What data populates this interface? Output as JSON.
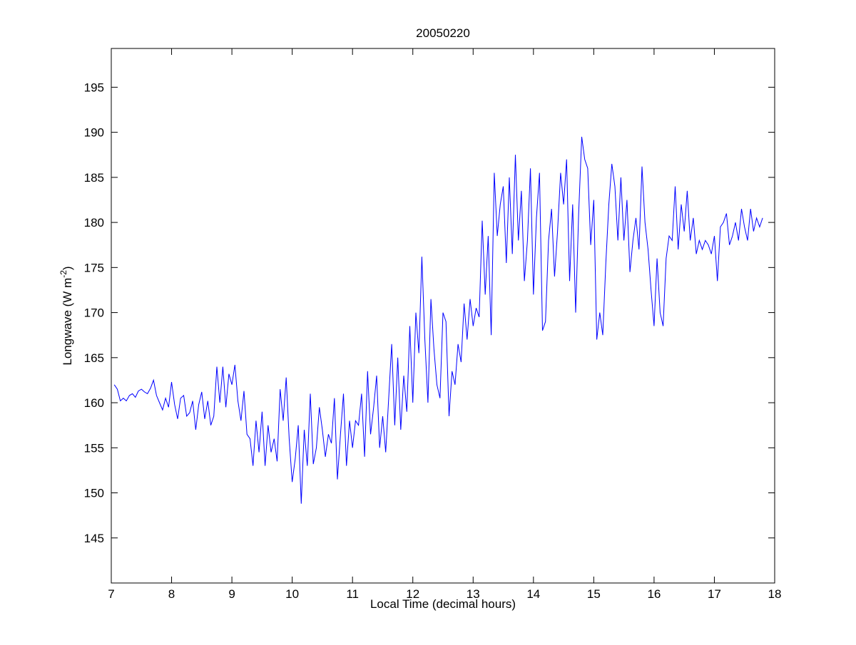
{
  "chart_data": {
    "type": "line",
    "title": "20050220",
    "xlabel": "Local Time (decimal hours)",
    "ylabel": {
      "main": "Longwave (W m",
      "superscript": "-2",
      "suffix": ")"
    },
    "xlim": [
      7,
      18
    ],
    "ylim": [
      140,
      199.3
    ],
    "xticks": [
      7,
      8,
      9,
      10,
      11,
      12,
      13,
      14,
      15,
      16,
      17,
      18
    ],
    "yticks": [
      145,
      150,
      155,
      160,
      165,
      170,
      175,
      180,
      185,
      190,
      195
    ],
    "grid": false,
    "series": [
      {
        "name": "Longwave",
        "color": "#0000ff",
        "x_start": 7.05,
        "x_step": 0.05,
        "values": [
          162,
          161.5,
          160.2,
          160.5,
          160.2,
          160.8,
          161.0,
          160.6,
          161.3,
          161.5,
          161.2,
          161.0,
          161.6,
          162.5,
          160.8,
          160.0,
          159.2,
          160.5,
          159.5,
          162.3,
          159.8,
          158.2,
          160.5,
          160.8,
          158.5,
          158.9,
          160.2,
          157.0,
          159.8,
          161.2,
          158.2,
          160.2,
          157.5,
          158.5,
          164.0,
          160.0,
          164.0,
          159.5,
          163.2,
          162.0,
          164.2,
          160.2,
          158.0,
          161.3,
          156.5,
          156.0,
          153.0,
          158.0,
          154.5,
          159.0,
          153.0,
          157.5,
          154.5,
          156.0,
          153.5,
          161.5,
          158.0,
          162.8,
          156.0,
          151.2,
          153.8,
          157.5,
          148.8,
          157.0,
          153.0,
          161.0,
          153.2,
          155.0,
          159.5,
          157.0,
          154.0,
          156.5,
          155.5,
          160.5,
          151.5,
          156.5,
          161.0,
          153.0,
          158.0,
          155.0,
          158.0,
          157.5,
          161.0,
          154.0,
          163.5,
          156.5,
          159.5,
          163.0,
          155.0,
          158.5,
          154.5,
          160.5,
          166.5,
          157.5,
          165.0,
          157.0,
          163.0,
          159.0,
          168.5,
          160.0,
          170.0,
          165.5,
          176.2,
          167.0,
          160.0,
          171.5,
          166.0,
          162.0,
          160.5,
          170.0,
          169.0,
          158.5,
          163.5,
          162.0,
          166.5,
          164.5,
          171.0,
          167.0,
          171.5,
          168.5,
          170.5,
          169.5,
          180.2,
          172.0,
          178.5,
          167.5,
          185.5,
          178.5,
          182.0,
          184.0,
          175.5,
          185.0,
          176.5,
          187.5,
          178.0,
          183.5,
          173.5,
          178.0,
          186.0,
          172.0,
          180.5,
          185.5,
          168.0,
          169.0,
          178.0,
          181.5,
          174.0,
          179.0,
          185.5,
          182.0,
          187.0,
          173.5,
          182.0,
          170.0,
          181.0,
          189.5,
          187.0,
          186.0,
          177.5,
          182.5,
          167.0,
          170.0,
          167.5,
          175.5,
          182.0,
          186.5,
          184.0,
          178.0,
          185.0,
          178.0,
          182.5,
          174.5,
          178.0,
          180.5,
          177.0,
          186.2,
          180.0,
          177.0,
          172.5,
          168.5,
          176.0,
          170.0,
          168.5,
          176.0,
          178.5,
          178.0,
          184.0,
          177.0,
          182.0,
          179.0,
          183.5,
          178.0,
          180.5,
          176.5,
          178.0,
          177.0,
          178.0,
          177.5,
          176.5,
          178.5,
          173.5,
          179.5,
          180.0,
          181.0,
          177.5,
          178.5,
          180.0,
          178.0,
          181.5,
          179.5,
          178.0,
          181.5,
          179.0,
          180.5,
          179.5,
          180.5
        ]
      }
    ]
  }
}
